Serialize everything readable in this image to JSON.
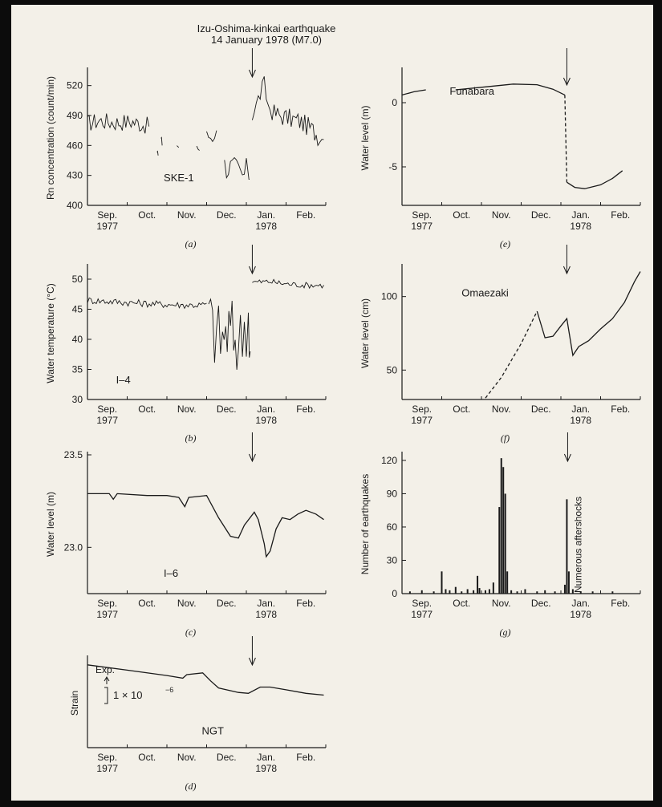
{
  "header": {
    "event": "Izu-Oshima-kinkai earthquake",
    "date": "14 January 1978 (M7.0)"
  },
  "colors": {
    "ink": "#1a1a1a",
    "paper": "#f3f0e8",
    "frame": "#0c0c0c"
  },
  "chart_data": [
    {
      "id": "a",
      "type": "line",
      "caption": "(a)",
      "station": "SKE-1",
      "ylabel": "Rn concentration (count/min)",
      "yticks": [
        400,
        430,
        460,
        490,
        520
      ],
      "ylim": [
        400,
        535
      ],
      "xlim": [
        0,
        6
      ],
      "xticks": [
        "Sep.",
        "Oct.",
        "Nov.",
        "Dec.",
        "Jan.",
        "Feb."
      ],
      "xsub": "1977",
      "xsub2": "1978",
      "event_x": 4.15,
      "series": [
        {
          "style": "noisy",
          "amp": 9,
          "points": [
            [
              0,
              482
            ],
            [
              0.3,
              485
            ],
            [
              0.7,
              483
            ],
            [
              1.1,
              484
            ],
            [
              1.4,
              481
            ],
            [
              1.55,
              479
            ]
          ]
        },
        {
          "style": "noisy",
          "amp": 6,
          "points": [
            [
              1.75,
              455
            ],
            [
              1.78,
              450
            ]
          ]
        },
        {
          "style": "noisy",
          "amp": 6,
          "points": [
            [
              1.85,
              466
            ],
            [
              1.88,
              460
            ]
          ]
        },
        {
          "style": "noisy",
          "amp": 5,
          "points": [
            [
              2.25,
              462
            ],
            [
              2.3,
              458
            ]
          ]
        },
        {
          "style": "noisy",
          "amp": 6,
          "points": [
            [
              2.75,
              460
            ],
            [
              2.82,
              455
            ]
          ]
        },
        {
          "style": "noisy",
          "amp": 7,
          "points": [
            [
              3.0,
              470
            ],
            [
              3.15,
              468
            ],
            [
              3.25,
              475
            ]
          ]
        },
        {
          "style": "noisy",
          "amp": 14,
          "points": [
            [
              3.45,
              440
            ],
            [
              3.6,
              438
            ],
            [
              3.75,
              435
            ],
            [
              3.9,
              428
            ],
            [
              4.05,
              437
            ],
            [
              4.08,
              426
            ]
          ]
        },
        {
          "style": "noisy",
          "amp": 10,
          "points": [
            [
              4.15,
              492
            ],
            [
              4.25,
              500
            ],
            [
              4.35,
              512
            ],
            [
              4.45,
              520
            ],
            [
              4.55,
              500
            ],
            [
              4.7,
              492
            ],
            [
              5.0,
              488
            ],
            [
              5.3,
              485
            ],
            [
              5.6,
              478
            ],
            [
              5.8,
              470
            ],
            [
              5.95,
              466
            ]
          ]
        }
      ]
    },
    {
      "id": "b",
      "type": "line",
      "caption": "(b)",
      "station": "I–4",
      "ylabel": "Water temperature (°C)",
      "yticks": [
        30,
        35,
        40,
        45,
        50
      ],
      "ylim": [
        30,
        52
      ],
      "xlim": [
        0,
        6
      ],
      "xticks": [
        "Sep.",
        "Oct.",
        "Nov.",
        "Dec.",
        "Jan.",
        "Feb."
      ],
      "xsub": "1977",
      "xsub2": "1978",
      "event_x": 4.15,
      "series": [
        {
          "style": "noisy",
          "amp": 0.6,
          "points": [
            [
              0,
              46.5
            ],
            [
              0.8,
              46.2
            ],
            [
              1.6,
              45.9
            ],
            [
              2.4,
              45.7
            ],
            [
              2.9,
              45.7
            ],
            [
              3.0,
              46.0
            ]
          ]
        },
        {
          "style": "noisy",
          "amp": 6,
          "points": [
            [
              3.05,
              44
            ],
            [
              3.2,
              41
            ],
            [
              3.4,
              40
            ],
            [
              3.6,
              41.5
            ],
            [
              3.8,
              39
            ],
            [
              3.95,
              42
            ],
            [
              4.05,
              44
            ],
            [
              4.1,
              38
            ]
          ]
        },
        {
          "style": "noisy",
          "amp": 0.5,
          "points": [
            [
              4.15,
              49.5
            ],
            [
              4.6,
              49.6
            ],
            [
              5.0,
              49.2
            ],
            [
              5.5,
              49.0
            ],
            [
              5.95,
              49.0
            ]
          ]
        }
      ]
    },
    {
      "id": "c",
      "type": "line",
      "caption": "(c)",
      "station": "I–6",
      "ylabel": "Water level (m)",
      "yticks": [
        23.0,
        23.5
      ],
      "ytick_labels": [
        "23.0",
        "23.5"
      ],
      "ylim": [
        22.75,
        23.5
      ],
      "xlim": [
        0,
        6
      ],
      "xticks": [
        "Sep.",
        "Oct.",
        "Nov.",
        "Dec.",
        "Jan.",
        "Feb."
      ],
      "xsub": "1977",
      "xsub2": "1978",
      "event_x": 4.15,
      "series": [
        {
          "style": "solid",
          "points": [
            [
              0,
              23.29
            ],
            [
              0.55,
              23.29
            ],
            [
              0.65,
              23.26
            ],
            [
              0.75,
              23.29
            ],
            [
              1.5,
              23.28
            ],
            [
              2.0,
              23.28
            ],
            [
              2.3,
              23.27
            ],
            [
              2.45,
              23.22
            ],
            [
              2.55,
              23.27
            ],
            [
              3.0,
              23.28
            ],
            [
              3.3,
              23.16
            ],
            [
              3.6,
              23.06
            ],
            [
              3.8,
              23.05
            ],
            [
              3.95,
              23.12
            ],
            [
              4.2,
              23.19
            ],
            [
              4.3,
              23.15
            ],
            [
              4.45,
              23.02
            ],
            [
              4.5,
              22.95
            ],
            [
              4.6,
              22.98
            ],
            [
              4.75,
              23.1
            ],
            [
              4.9,
              23.16
            ],
            [
              5.1,
              23.15
            ],
            [
              5.3,
              23.18
            ],
            [
              5.5,
              23.2
            ],
            [
              5.75,
              23.18
            ],
            [
              5.95,
              23.15
            ]
          ]
        }
      ]
    },
    {
      "id": "d",
      "type": "line",
      "caption": "(d)",
      "station": "NGT",
      "ylabel": "Strain",
      "ylim": [
        0,
        1
      ],
      "xlim": [
        0,
        6
      ],
      "xticks": [
        "Sep.",
        "Oct.",
        "Nov.",
        "Dec.",
        "Jan.",
        "Feb."
      ],
      "xsub": "1977",
      "xsub2": "1978",
      "event_x": 4.15,
      "annotation_top": "Exp.",
      "annotation_scale": "1 × 10",
      "scale_exp": "−6",
      "series": [
        {
          "style": "solid",
          "points": [
            [
              0,
              0.93
            ],
            [
              1.0,
              0.87
            ],
            [
              2.0,
              0.81
            ],
            [
              2.4,
              0.78
            ],
            [
              2.5,
              0.82
            ],
            [
              2.9,
              0.84
            ],
            [
              3.1,
              0.75
            ],
            [
              3.3,
              0.67
            ],
            [
              3.8,
              0.62
            ],
            [
              4.05,
              0.61
            ],
            [
              4.35,
              0.68
            ],
            [
              4.6,
              0.68
            ],
            [
              5.0,
              0.65
            ],
            [
              5.5,
              0.61
            ],
            [
              5.95,
              0.59
            ]
          ]
        }
      ]
    },
    {
      "id": "e",
      "type": "line",
      "caption": "(e)",
      "station": "Funabara",
      "ylabel": "Water level (m)",
      "yticks": [
        -5,
        0
      ],
      "ytick_labels": [
        "-5",
        "0"
      ],
      "ylim": [
        -8,
        2.5
      ],
      "xlim": [
        0,
        6
      ],
      "xticks": [
        "Sep.",
        "Oct.",
        "Nov.",
        "Dec.",
        "Jan.",
        "Feb."
      ],
      "xsub": "1977",
      "xsub2": "1978",
      "event_x": 4.15,
      "series": [
        {
          "style": "solid",
          "points": [
            [
              0,
              0.6
            ],
            [
              0.3,
              0.85
            ],
            [
              0.6,
              1.0
            ]
          ]
        },
        {
          "style": "solid",
          "points": [
            [
              1.35,
              1.0
            ],
            [
              2.0,
              1.2
            ],
            [
              2.8,
              1.45
            ],
            [
              3.4,
              1.4
            ],
            [
              3.8,
              1.05
            ],
            [
              4.1,
              0.6
            ]
          ]
        },
        {
          "style": "dashed",
          "points": [
            [
              4.1,
              0.6
            ],
            [
              4.15,
              -6.2
            ]
          ]
        },
        {
          "style": "solid",
          "points": [
            [
              4.15,
              -6.2
            ],
            [
              4.35,
              -6.6
            ],
            [
              4.6,
              -6.7
            ],
            [
              5.0,
              -6.4
            ],
            [
              5.3,
              -5.9
            ],
            [
              5.55,
              -5.3
            ]
          ]
        }
      ]
    },
    {
      "id": "f",
      "type": "line",
      "caption": "(f)",
      "station": "Omaezaki",
      "ylabel": "Water level (cm)",
      "yticks": [
        50,
        100
      ],
      "ylim": [
        30,
        120
      ],
      "xlim": [
        0,
        6
      ],
      "xticks": [
        "Sep.",
        "Oct.",
        "Nov.",
        "Dec.",
        "Jan.",
        "Feb."
      ],
      "xsub": "1977",
      "xsub2": "1978",
      "event_x": 4.15,
      "series": [
        {
          "style": "dashed",
          "points": [
            [
              2.1,
              31
            ],
            [
              2.5,
              45
            ],
            [
              3.0,
              68
            ],
            [
              3.4,
              90
            ]
          ]
        },
        {
          "style": "solid",
          "points": [
            [
              3.4,
              90
            ],
            [
              3.6,
              72
            ],
            [
              3.8,
              73
            ],
            [
              4.0,
              80
            ],
            [
              4.15,
              85
            ],
            [
              4.3,
              60
            ],
            [
              4.45,
              66
            ],
            [
              4.7,
              70
            ],
            [
              5.0,
              78
            ],
            [
              5.3,
              85
            ],
            [
              5.6,
              96
            ],
            [
              5.85,
              110
            ],
            [
              6.0,
              117
            ]
          ]
        }
      ]
    },
    {
      "id": "g",
      "type": "bar",
      "caption": "(g)",
      "ylabel": "Number of earthquakes",
      "yticks": [
        0,
        30,
        60,
        90,
        120
      ],
      "ylim": [
        0,
        125
      ],
      "xlim": [
        0,
        6
      ],
      "xticks": [
        "Sep.",
        "Oct.",
        "Nov.",
        "Dec.",
        "Jan.",
        "Feb."
      ],
      "xsub": "1977",
      "xsub2": "1978",
      "event_x": 4.15,
      "vlabel": "Numerous aftershocks",
      "bars": [
        [
          0.2,
          2
        ],
        [
          0.5,
          3
        ],
        [
          0.8,
          2
        ],
        [
          1.0,
          20
        ],
        [
          1.1,
          4
        ],
        [
          1.2,
          3
        ],
        [
          1.35,
          6
        ],
        [
          1.5,
          2
        ],
        [
          1.65,
          4
        ],
        [
          1.8,
          3
        ],
        [
          1.9,
          16
        ],
        [
          1.95,
          5
        ],
        [
          2.1,
          3
        ],
        [
          2.2,
          4
        ],
        [
          2.3,
          10
        ],
        [
          2.45,
          78
        ],
        [
          2.5,
          122
        ],
        [
          2.55,
          114
        ],
        [
          2.6,
          90
        ],
        [
          2.65,
          20
        ],
        [
          2.75,
          3
        ],
        [
          2.9,
          2
        ],
        [
          3.1,
          4
        ],
        [
          3.4,
          2
        ],
        [
          3.6,
          3
        ],
        [
          3.85,
          2
        ],
        [
          4.1,
          8
        ],
        [
          4.15,
          85
        ],
        [
          4.2,
          20
        ],
        [
          4.3,
          4
        ],
        [
          4.5,
          2
        ],
        [
          4.8,
          2
        ],
        [
          5.3,
          2
        ]
      ]
    }
  ]
}
